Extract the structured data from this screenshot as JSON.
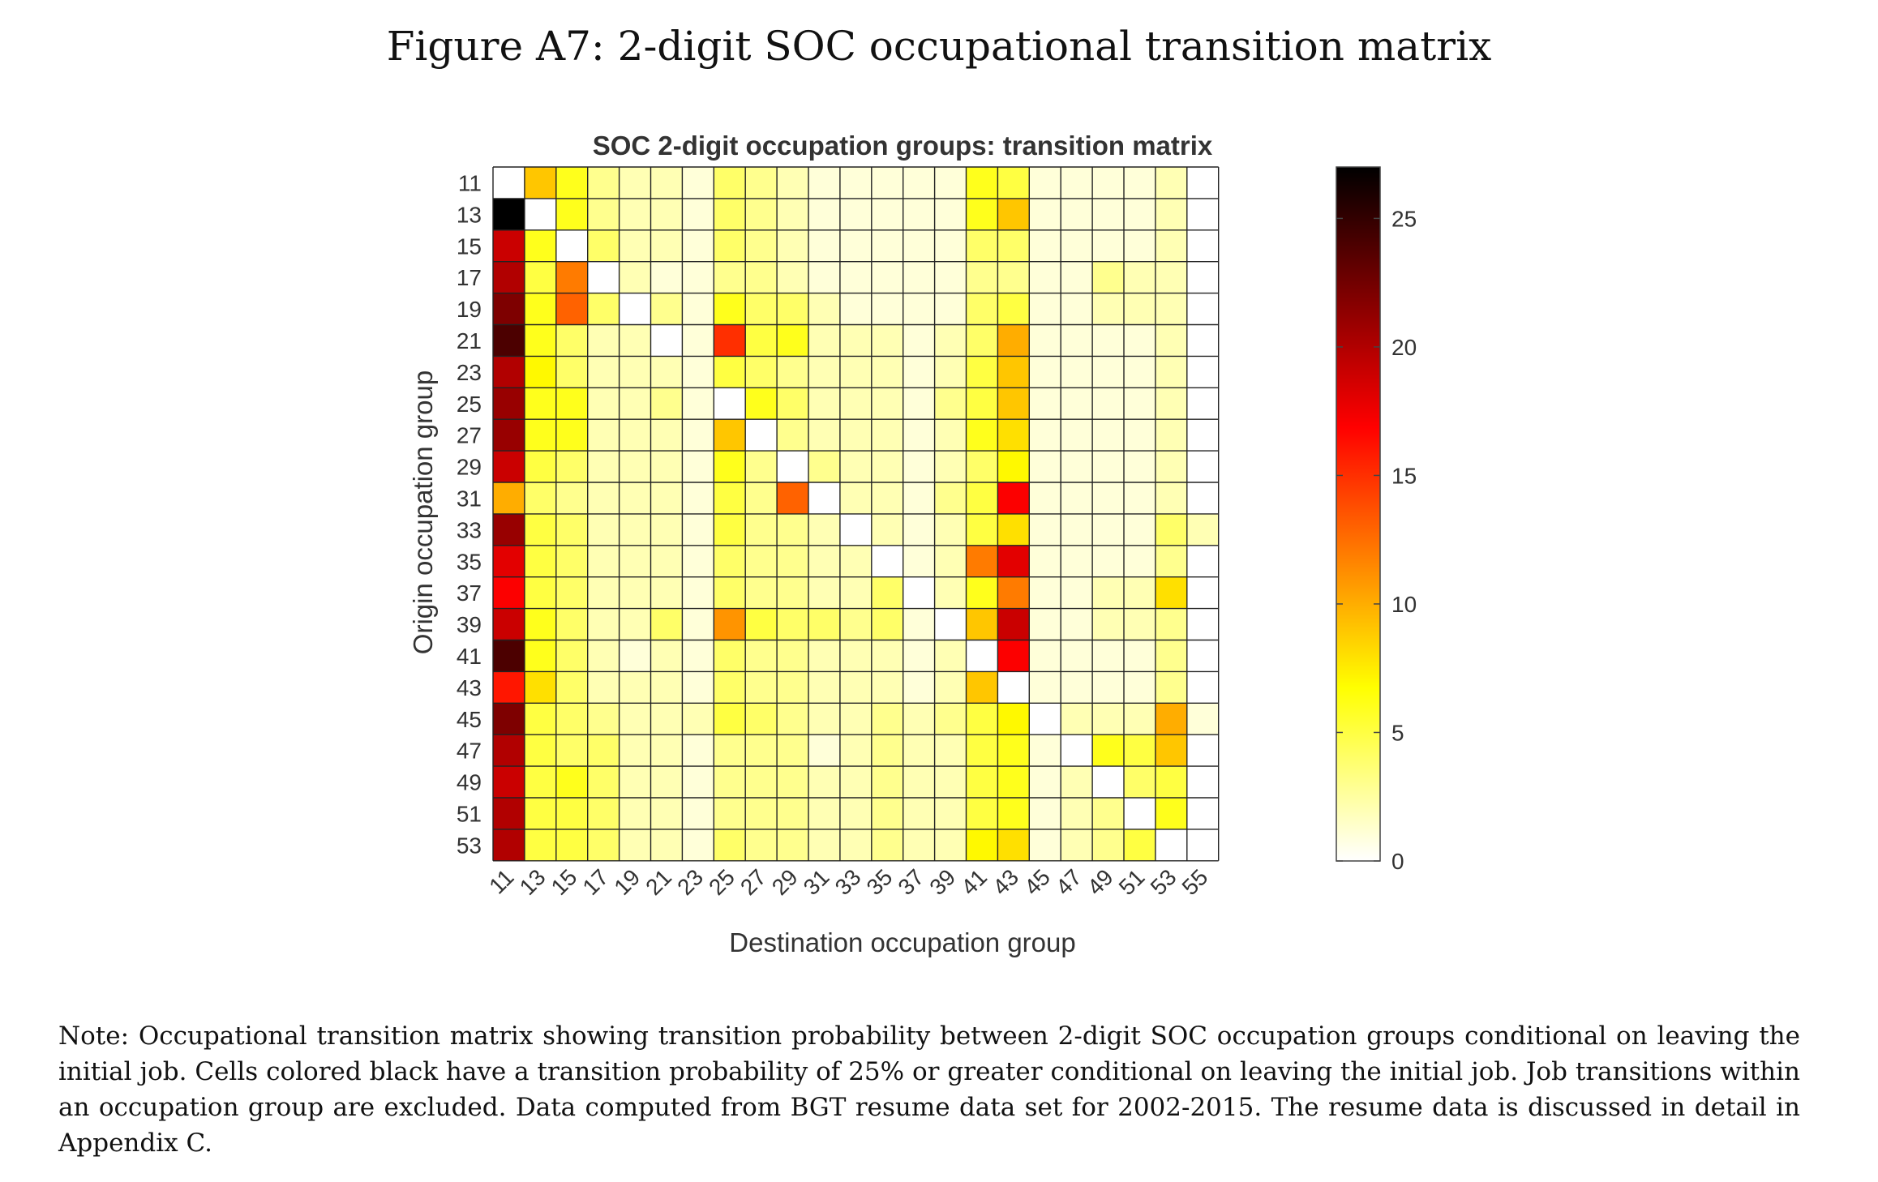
{
  "figure": {
    "caption": "Figure A7: 2-digit SOC occupational transition matrix",
    "note": "Note: Occupational transition matrix showing transition probability between 2-digit SOC occupation groups conditional on leaving the initial job. Cells colored black have a transition probability of 25% or greater conditional on leaving the initial job. Job transitions within an occupation group are excluded. Data computed from BGT resume data set for 2002-2015. The resume data is discussed in detail in Appendix C."
  },
  "chart_data": {
    "type": "heatmap",
    "title": "SOC 2-digit occupation groups: transition matrix",
    "xlabel": "Destination occupation group",
    "ylabel": "Origin occupation group",
    "rows": [
      "11",
      "13",
      "15",
      "17",
      "19",
      "21",
      "23",
      "25",
      "27",
      "29",
      "31",
      "33",
      "35",
      "37",
      "39",
      "41",
      "43",
      "45",
      "47",
      "49",
      "51",
      "53"
    ],
    "columns": [
      "11",
      "13",
      "15",
      "17",
      "19",
      "21",
      "23",
      "25",
      "27",
      "29",
      "31",
      "33",
      "35",
      "37",
      "39",
      "41",
      "43",
      "45",
      "47",
      "49",
      "51",
      "53",
      "55"
    ],
    "values": [
      [
        0,
        9,
        6,
        3,
        2,
        2,
        1,
        4,
        3,
        2,
        1,
        1,
        1,
        1,
        1,
        6,
        5,
        1,
        1,
        1,
        1,
        2,
        0
      ],
      [
        27,
        0,
        6,
        3,
        2,
        2,
        1,
        4,
        3,
        2,
        1,
        1,
        1,
        1,
        1,
        6,
        9,
        1,
        1,
        1,
        1,
        2,
        0
      ],
      [
        19,
        6,
        0,
        4,
        2,
        2,
        1,
        4,
        3,
        2,
        1,
        1,
        1,
        1,
        1,
        4,
        4,
        1,
        1,
        1,
        1,
        2,
        0
      ],
      [
        20,
        5,
        12,
        0,
        2,
        1,
        1,
        3,
        3,
        2,
        1,
        1,
        1,
        1,
        1,
        3,
        3,
        1,
        1,
        3,
        2,
        2,
        0
      ],
      [
        22,
        6,
        13,
        4,
        0,
        3,
        1,
        6,
        4,
        4,
        2,
        1,
        1,
        1,
        1,
        4,
        5,
        1,
        1,
        2,
        2,
        2,
        0
      ],
      [
        24,
        6,
        4,
        2,
        2,
        0,
        1,
        15,
        5,
        6,
        2,
        2,
        2,
        1,
        2,
        4,
        10,
        1,
        1,
        1,
        1,
        2,
        0
      ],
      [
        20,
        7,
        4,
        2,
        2,
        2,
        1,
        5,
        4,
        3,
        2,
        2,
        2,
        1,
        2,
        5,
        9,
        1,
        1,
        1,
        1,
        2,
        0
      ],
      [
        21,
        6,
        6,
        2,
        2,
        3,
        1,
        0,
        6,
        4,
        2,
        2,
        2,
        1,
        3,
        5,
        9,
        1,
        1,
        1,
        1,
        2,
        0
      ],
      [
        21,
        6,
        6,
        2,
        2,
        2,
        1,
        9,
        0,
        3,
        2,
        2,
        2,
        1,
        2,
        6,
        8,
        1,
        1,
        1,
        1,
        2,
        0
      ],
      [
        19,
        5,
        4,
        2,
        2,
        2,
        1,
        6,
        3,
        0,
        3,
        2,
        2,
        1,
        2,
        4,
        7,
        1,
        1,
        1,
        1,
        2,
        0
      ],
      [
        10,
        4,
        3,
        2,
        2,
        2,
        1,
        5,
        3,
        13,
        0,
        2,
        2,
        1,
        3,
        5,
        17,
        1,
        1,
        1,
        1,
        2,
        0
      ],
      [
        21,
        5,
        4,
        2,
        2,
        2,
        1,
        5,
        3,
        3,
        2,
        0,
        2,
        1,
        2,
        5,
        8,
        1,
        1,
        1,
        1,
        4,
        2
      ],
      [
        18,
        5,
        4,
        2,
        2,
        2,
        1,
        4,
        3,
        3,
        2,
        2,
        0,
        1,
        2,
        12,
        18,
        1,
        1,
        1,
        1,
        3,
        0
      ],
      [
        17,
        5,
        4,
        2,
        2,
        2,
        1,
        4,
        3,
        3,
        2,
        2,
        4,
        0,
        2,
        6,
        12,
        1,
        1,
        2,
        2,
        8,
        0
      ],
      [
        19,
        6,
        4,
        2,
        2,
        4,
        1,
        11,
        5,
        4,
        4,
        3,
        4,
        1,
        0,
        9,
        19,
        1,
        1,
        2,
        2,
        3,
        0
      ],
      [
        24,
        6,
        4,
        2,
        1,
        2,
        1,
        4,
        3,
        3,
        2,
        2,
        2,
        1,
        2,
        0,
        17,
        1,
        1,
        1,
        1,
        3,
        0
      ],
      [
        16,
        8,
        4,
        2,
        2,
        2,
        1,
        4,
        3,
        3,
        2,
        2,
        2,
        1,
        2,
        9,
        0,
        1,
        1,
        1,
        1,
        3,
        0
      ],
      [
        22,
        5,
        4,
        3,
        2,
        2,
        2,
        5,
        4,
        3,
        2,
        2,
        3,
        2,
        3,
        5,
        7,
        0,
        2,
        2,
        2,
        10,
        1
      ],
      [
        20,
        5,
        4,
        4,
        2,
        2,
        1,
        3,
        3,
        3,
        1,
        2,
        3,
        2,
        2,
        5,
        6,
        1,
        0,
        6,
        5,
        9,
        0
      ],
      [
        19,
        5,
        6,
        4,
        2,
        2,
        1,
        3,
        3,
        3,
        2,
        2,
        3,
        2,
        2,
        5,
        6,
        1,
        2,
        0,
        4,
        5,
        0
      ],
      [
        20,
        5,
        5,
        4,
        2,
        2,
        1,
        3,
        3,
        3,
        2,
        2,
        3,
        2,
        2,
        5,
        6,
        1,
        2,
        3,
        0,
        6,
        0
      ],
      [
        20,
        5,
        5,
        4,
        2,
        2,
        1,
        4,
        3,
        3,
        2,
        2,
        3,
        2,
        2,
        7,
        8,
        1,
        2,
        3,
        5,
        0,
        0
      ]
    ],
    "colorbar": {
      "min": 0,
      "max": 27,
      "ticks": [
        0,
        5,
        10,
        15,
        20,
        25
      ],
      "colormap": "hot-reversed (white-yellow-orange-red-black)"
    }
  }
}
